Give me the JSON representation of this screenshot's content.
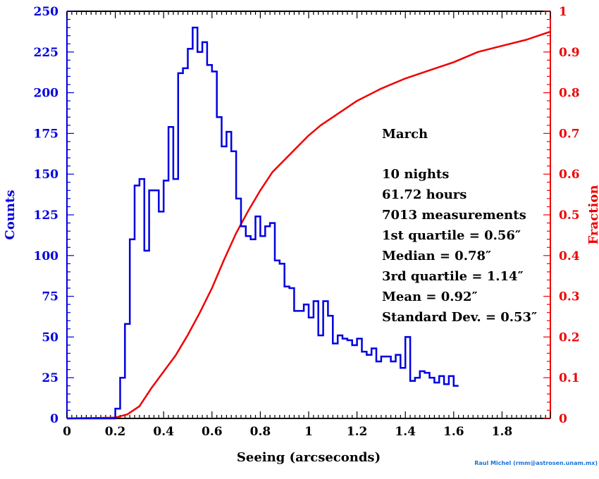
{
  "chart_data": {
    "type": "line",
    "xlabel": "Seeing (arcseconds)",
    "ylabel_left": "Counts",
    "ylabel_right": "Fraction",
    "xlim": [
      0,
      2.0
    ],
    "ylim_left": [
      0,
      250
    ],
    "ylim_right": [
      0,
      1.0
    ],
    "x_ticks": [
      "0",
      "0.2",
      "0.4",
      "0.6",
      "0.8",
      "1",
      "1.2",
      "1.4",
      "1.6",
      "1.8"
    ],
    "y_ticks_left": [
      "0",
      "25",
      "50",
      "75",
      "100",
      "125",
      "150",
      "175",
      "200",
      "225",
      "250"
    ],
    "y_ticks_right": [
      "0",
      "0.1",
      "0.2",
      "0.3",
      "0.4",
      "0.5",
      "0.6",
      "0.7",
      "0.8",
      "0.9",
      "1"
    ],
    "histogram": {
      "name": "Counts",
      "color": "#0000e0",
      "bin_width": 0.02,
      "bin_start": 0.2,
      "values": [
        6,
        25,
        58,
        110,
        143,
        147,
        103,
        140,
        140,
        127,
        146,
        179,
        147,
        212,
        215,
        227,
        240,
        225,
        231,
        217,
        213,
        185,
        167,
        176,
        164,
        135,
        118,
        112,
        110,
        124,
        112,
        118,
        120,
        97,
        95,
        81,
        80,
        66,
        66,
        70,
        62,
        72,
        51,
        72,
        63,
        46,
        51,
        49,
        48,
        45,
        49,
        41,
        39,
        43,
        35,
        38,
        38,
        35,
        39,
        31,
        50,
        23,
        25,
        29,
        28,
        25,
        22,
        26,
        21,
        26,
        20
      ]
    },
    "cumulative": {
      "name": "Fraction",
      "color": "#ee0000",
      "x": [
        0,
        0.2,
        0.25,
        0.3,
        0.35,
        0.4,
        0.45,
        0.5,
        0.55,
        0.6,
        0.65,
        0.7,
        0.75,
        0.8,
        0.85,
        0.9,
        0.95,
        1.0,
        1.05,
        1.1,
        1.2,
        1.3,
        1.4,
        1.5,
        1.6,
        1.7,
        1.8,
        1.9,
        2.0
      ],
      "y": [
        0,
        0.002,
        0.01,
        0.03,
        0.075,
        0.115,
        0.155,
        0.205,
        0.26,
        0.32,
        0.39,
        0.455,
        0.51,
        0.56,
        0.605,
        0.635,
        0.665,
        0.695,
        0.72,
        0.74,
        0.78,
        0.81,
        0.835,
        0.855,
        0.875,
        0.9,
        0.915,
        0.93,
        0.95
      ]
    },
    "annotations": {
      "month": "March",
      "lines": [
        "10 nights",
        "61.72 hours",
        "7013 measurements",
        "1st quartile = 0.56″",
        "Median = 0.78″",
        "3rd quartile = 1.14″",
        "Mean = 0.92″",
        "Standard Dev. = 0.53″"
      ]
    },
    "credit": "Raul Michel (rmm@astrosen.unam.mx)"
  }
}
